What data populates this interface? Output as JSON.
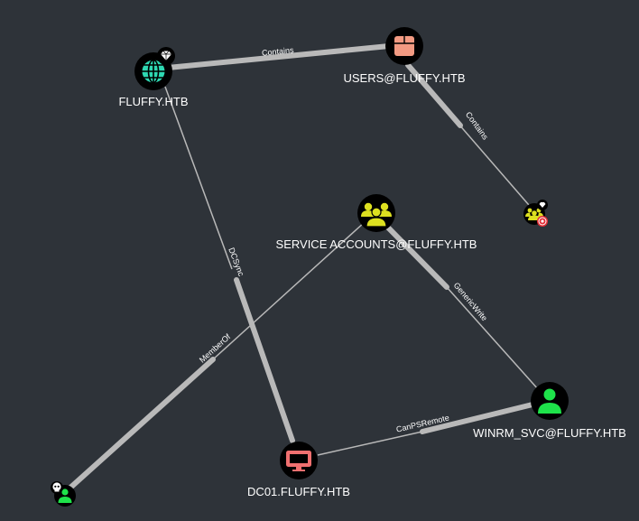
{
  "colors": {
    "background": "#2e3339",
    "edge": "#b9b9b9",
    "node_fill": "#000000",
    "domain_icon": "#2ed8b2",
    "group_icon": "#dde020",
    "group_users_icon": "#f29a82",
    "user_icon": "#1ee24a",
    "computer_icon": "#f07070",
    "target_badge": "#e52d35"
  },
  "nodes": {
    "domain": {
      "label": "FLUFFY.HTB",
      "type": "Domain",
      "icon": "globe-icon",
      "badge": "diamond-icon"
    },
    "users_group": {
      "label": "USERS@FLUFFY.HTB",
      "type": "Group",
      "icon": "box-icon"
    },
    "service_accounts": {
      "label": "SERVICE ACCOUNTS@FLUFFY.HTB",
      "type": "Group",
      "icon": "group-icon"
    },
    "small_group": {
      "label": "",
      "type": "Group",
      "icon": "group-icon",
      "badges": [
        "diamond-icon",
        "target-icon"
      ]
    },
    "winrm_svc": {
      "label": "WINRM_SVC@FLUFFY.HTB",
      "type": "User",
      "icon": "user-icon"
    },
    "dc01": {
      "label": "DC01.FLUFFY.HTB",
      "type": "Computer",
      "icon": "monitor-icon"
    },
    "owned_user": {
      "label": "",
      "type": "User",
      "icon": "user-icon",
      "badge": "skull-icon"
    }
  },
  "edges": {
    "domain_contains_users": {
      "label": "Contains"
    },
    "users_contains_group": {
      "label": "Contains"
    },
    "domain_dcsync_dc01": {
      "label": "DCSync"
    },
    "owned_memberof_service": {
      "label": "MemberOf"
    },
    "service_genericwrite_winrm": {
      "label": "GenericWrite"
    },
    "dc01_canpsremote_winrm": {
      "label": "CanPSRemote"
    }
  }
}
